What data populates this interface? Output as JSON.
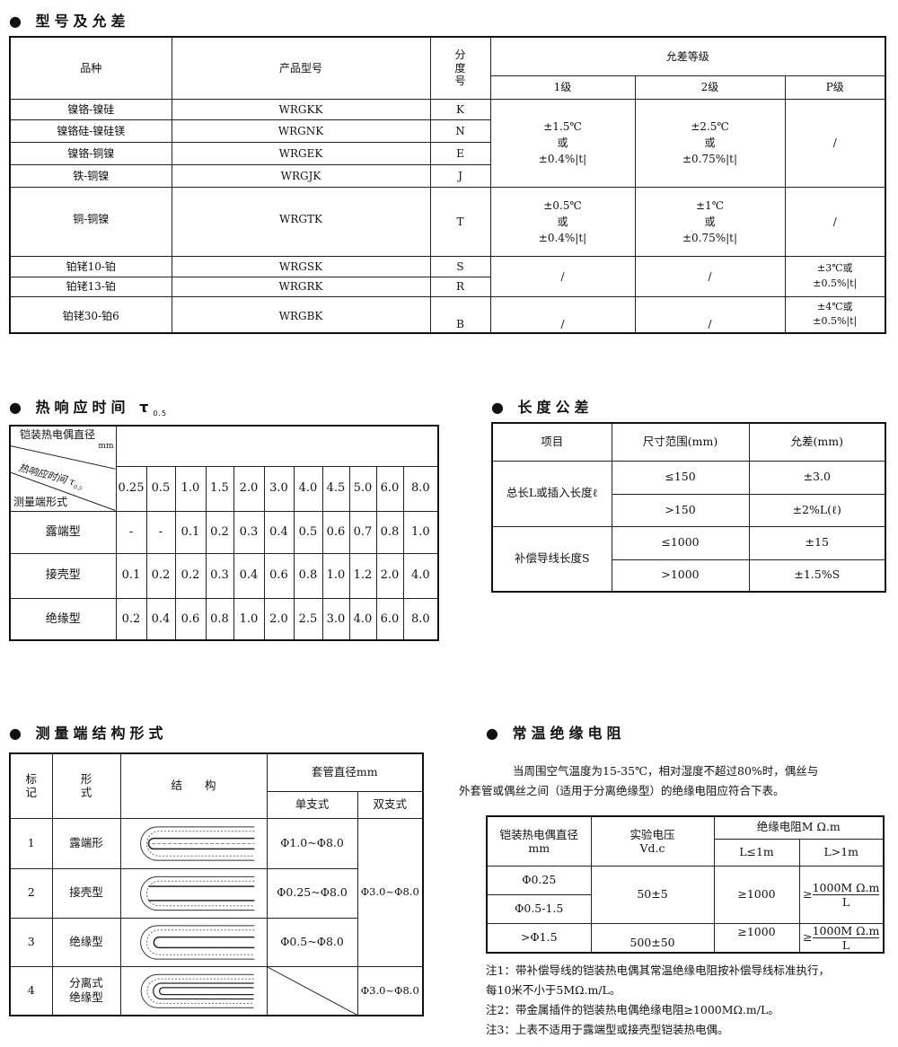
{
  "section1": {
    "title": "型号及允差",
    "headers": {
      "variety": "品种",
      "model": "产品型号",
      "grade_no": "分度号",
      "tolerance": "允差等级",
      "g1": "1级",
      "g2": "2级",
      "gp": "P级"
    },
    "rows": [
      {
        "variety": "镍铬-镍硅",
        "model": "WRGKK",
        "code": "K"
      },
      {
        "variety": "镍铬硅-镍硅镁",
        "model": "WRGNK",
        "code": "N"
      },
      {
        "variety": "镍铬-铜镍",
        "model": "WRGEK",
        "code": "E"
      },
      {
        "variety": "铁-铜镍",
        "model": "WRGJK",
        "code": "J"
      },
      {
        "variety": "铜-铜镍",
        "model": "WRGTK",
        "code": "T"
      },
      {
        "variety": "铂铑10-铂",
        "model": "WRGSK",
        "code": "S"
      },
      {
        "variety": "铂铑13-铂",
        "model": "WRGRK",
        "code": "R"
      },
      {
        "variety": "铂铑30-铂6",
        "model": "WRGBK",
        "code": "B"
      }
    ],
    "groupA": {
      "g1": [
        "±1.5℃",
        "或",
        "±0.4%|t|"
      ],
      "g2": [
        "±2.5℃",
        "或",
        "±0.75%|t|"
      ],
      "gp": "/"
    },
    "groupT": {
      "g1": [
        "±0.5℃",
        "或",
        "±0.4%|t|"
      ],
      "g2": [
        "±1℃",
        "或",
        "±0.75%|t|"
      ],
      "gp": "/"
    },
    "groupSR": {
      "g1": "/",
      "g2": "/",
      "gp": [
        "±3℃或",
        "±0.5%|t|"
      ]
    },
    "groupB": {
      "g1": "/",
      "g2": "/",
      "gp": [
        "±4℃或",
        "±0.5%|t|"
      ]
    }
  },
  "section2": {
    "title": "热响应时间 τ",
    "title_sub": "0.5",
    "corner": {
      "top": "铠装热电偶直径",
      "unit": "mm",
      "mid": "热响应时间 τ",
      "mid_sub": "0.5",
      "bottom": "测量端形式"
    },
    "diameters": [
      "0.25",
      "0.5",
      "1.0",
      "1.5",
      "2.0",
      "3.0",
      "4.0",
      "4.5",
      "5.0",
      "6.0",
      "8.0"
    ],
    "rows": [
      {
        "type": "露端型",
        "values": [
          "-",
          "-",
          "0.1",
          "0.2",
          "0.3",
          "0.4",
          "0.5",
          "0.6",
          "0.7",
          "0.8",
          "1.0"
        ]
      },
      {
        "type": "接壳型",
        "values": [
          "0.1",
          "0.2",
          "0.2",
          "0.3",
          "0.4",
          "0.6",
          "0.8",
          "1.0",
          "1.2",
          "2.0",
          "4.0"
        ]
      },
      {
        "type": "绝缘型",
        "values": [
          "0.2",
          "0.4",
          "0.6",
          "0.8",
          "1.0",
          "2.0",
          "2.5",
          "3.0",
          "4.0",
          "6.0",
          "8.0"
        ]
      }
    ]
  },
  "section3": {
    "title": "长度公差",
    "headers": [
      "项目",
      "尺寸范围(mm)",
      "允差(mm)"
    ],
    "item1": "总长L或插入长度ℓ",
    "item2": "补偿导线长度S",
    "rows": [
      [
        "≤150",
        "±3.0"
      ],
      [
        ">150",
        "±2%L(ℓ)"
      ],
      [
        "≤1000",
        "±15"
      ],
      [
        ">1000",
        "±1.5%S"
      ]
    ]
  },
  "section4": {
    "title": "测量端结构形式",
    "headers": {
      "mark": "标记",
      "form": "形式",
      "structure": "结　　构",
      "sleeve": "套管直径mm",
      "single": "单支式",
      "double": "双支式"
    },
    "rows": [
      {
        "mark": "1",
        "form": "露端形",
        "single": "Φ1.0~Φ8.0",
        "icon": "exposed-junction-diagram"
      },
      {
        "mark": "2",
        "form": "接壳型",
        "single": "Φ0.25~Φ8.0",
        "icon": "grounded-junction-diagram"
      },
      {
        "mark": "3",
        "form": "绝缘型",
        "single": "Φ0.5~Φ8.0",
        "icon": "insulated-junction-diagram"
      },
      {
        "mark": "4",
        "form": "分离式绝缘型",
        "single": "",
        "icon": "separate-insulated-diagram"
      }
    ],
    "double_1_3": "Φ3.0~Φ8.0",
    "double_4": "Φ3.0~Φ8.0"
  },
  "section5": {
    "title": "常温绝缘电阻",
    "intro": [
      "当周围空气温度为15-35℃，相对湿度不超过80%时，偶丝与",
      "外套管或偶丝之间（适用于分离绝缘型）的绝缘电阻应符合下表。"
    ],
    "headers": {
      "dia": "铠装热电偶直径",
      "dia_unit": "mm",
      "volt": "实验电压",
      "volt_unit": "Vd.c",
      "res": "绝缘电阻M Ω.m",
      "le": "L≤1m",
      "gt": "L>1m"
    },
    "rows": {
      "d1": "Φ0.25",
      "d2": "Φ0.5-1.5",
      "d3": ">Φ1.5",
      "v1": "50±5",
      "v2": "500±50",
      "r1": "≥1000",
      "r2": "≥1000",
      "ge": "≥",
      "num": "1000M Ω.m",
      "den": "L"
    },
    "notes": [
      "注1：带补偿导线的铠装热电偶其常温绝缘电阻按补偿导线标准执行，",
      "每10米不小于5MΩ.m/L。",
      "注2：带金属插件的铠装热电偶绝缘电阻≥1000MΩ.m/L。",
      "注3：上表不适用于露端型或接壳型铠装热电偶。"
    ]
  }
}
